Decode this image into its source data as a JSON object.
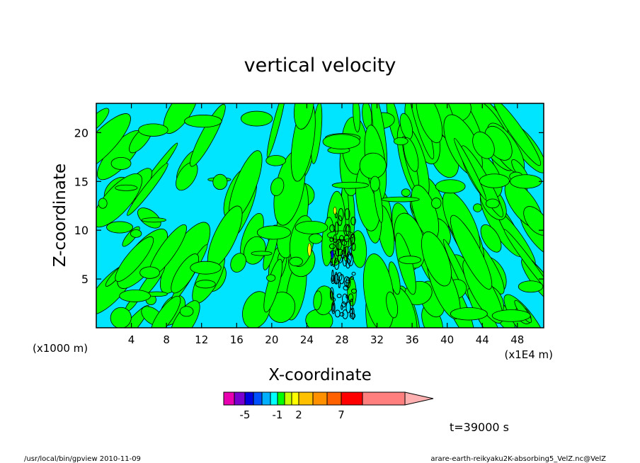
{
  "chart_data": {
    "type": "heatmap",
    "title": "vertical velocity",
    "xlabel": "X-coordinate",
    "ylabel": "Z-coordinate",
    "x_unit_left": "(x1000 m)",
    "x_unit_right": "(x1E4 m)",
    "xlim": [
      0,
      51
    ],
    "ylim": [
      0,
      23
    ],
    "x_ticks": [
      "4",
      "8",
      "12",
      "16",
      "20",
      "24",
      "28",
      "32",
      "36",
      "40",
      "44",
      "48"
    ],
    "x_tick_values": [
      4,
      8,
      12,
      16,
      20,
      24,
      28,
      32,
      36,
      40,
      44,
      48
    ],
    "y_ticks": [
      "5",
      "10",
      "15",
      "20"
    ],
    "y_tick_values": [
      5,
      10,
      15,
      20
    ],
    "background_field_color": "#00e5ff",
    "positive_field_color": "#00ff00",
    "contour_color": "#000000",
    "colorbar": {
      "colors": [
        "#e800b0",
        "#7a00d0",
        "#0000e0",
        "#0050ff",
        "#00b0ff",
        "#00ffff",
        "#00ff00",
        "#c8ff00",
        "#ffff00",
        "#ffc000",
        "#ff9000",
        "#ff6000",
        "#ff0000",
        "#ff7f7f",
        "#ffb0b0"
      ],
      "labels": [
        "-5",
        "-1",
        "2",
        "7"
      ],
      "label_values": [
        -5,
        -1,
        2,
        7
      ]
    },
    "time_label": "t=39000 s"
  },
  "footer": {
    "left": "/usr/local/bin/gpview  2010-11-09",
    "right": "arare-earth-reikyaku2K-absorbing5_VelZ.nc@VelZ"
  }
}
